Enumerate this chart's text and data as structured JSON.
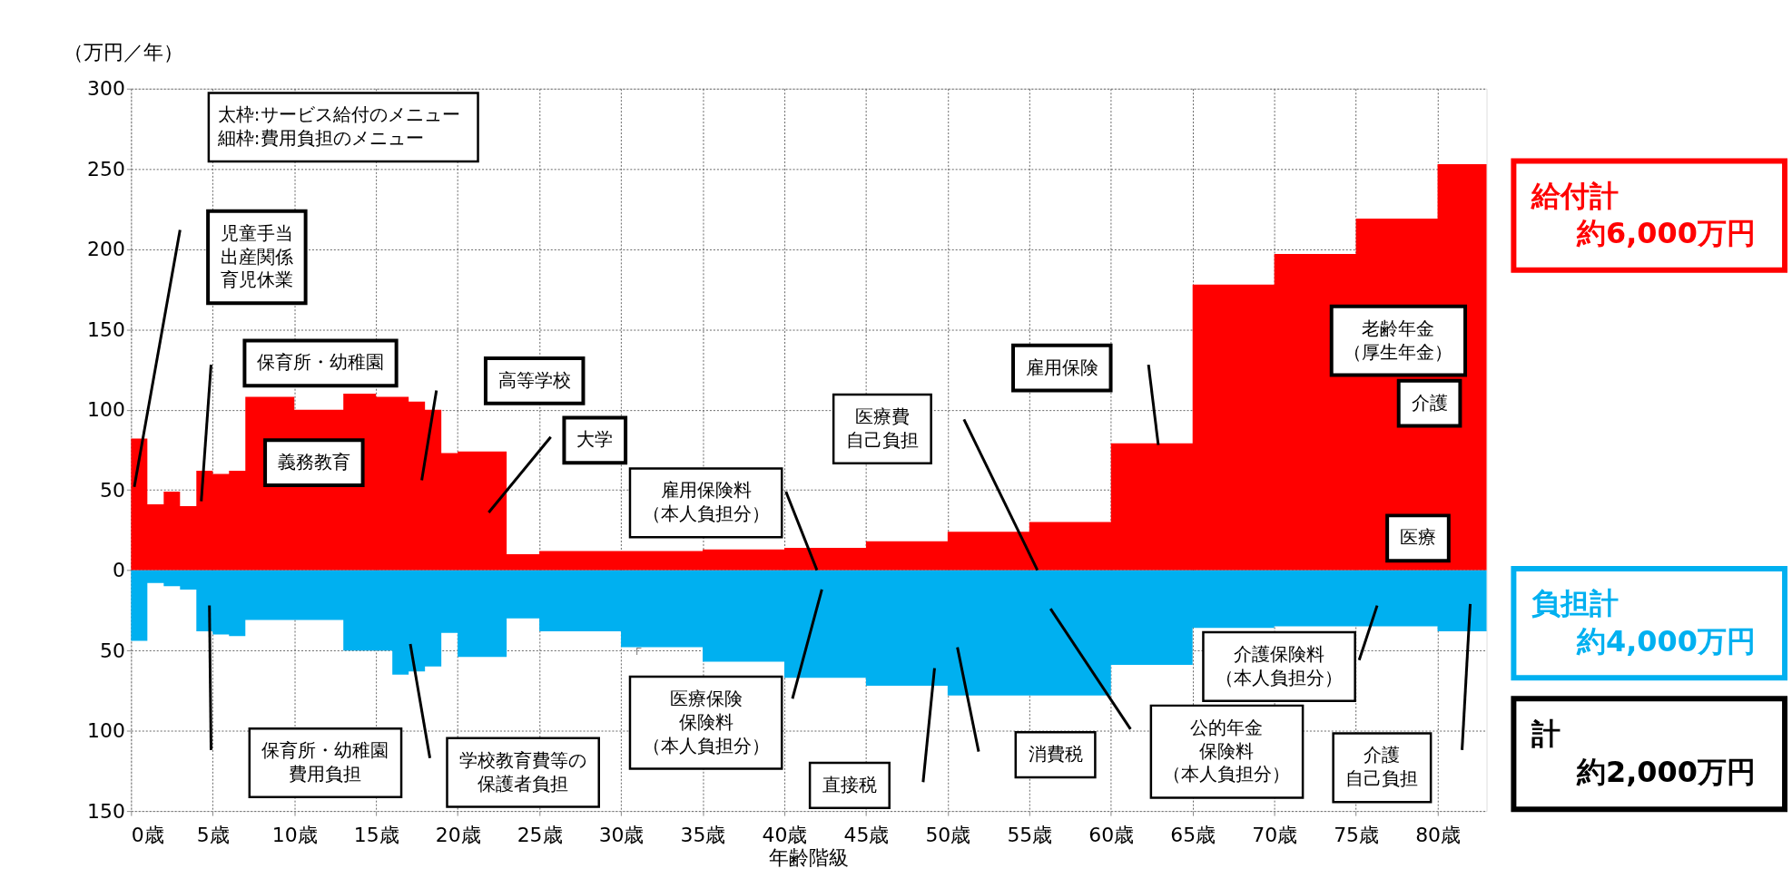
{
  "chart_data": {
    "type": "area",
    "xlabel": "年齢階級",
    "ylabel": "（万円／年）",
    "series": [
      {
        "color": "#ff0000",
        "x": [
          0,
          1,
          2,
          3,
          4,
          5,
          6,
          7,
          10,
          13,
          15,
          17,
          18,
          19,
          20,
          23,
          25,
          35,
          40,
          45,
          50,
          55,
          60,
          65,
          70,
          75,
          80,
          83
        ],
        "values": [
          82,
          41,
          49,
          40,
          62,
          60,
          62,
          108,
          100,
          110,
          108,
          105,
          100,
          73,
          74,
          10,
          12,
          13,
          14,
          18,
          24,
          30,
          79,
          178,
          197,
          219,
          253,
          253
        ]
      },
      {
        "color": "#00b0f0",
        "x": [
          0,
          1,
          2,
          3,
          4,
          5,
          6,
          7,
          13,
          16,
          17,
          18,
          19,
          20,
          23,
          25,
          30,
          35,
          40,
          45,
          50,
          60,
          65,
          70,
          80,
          83
        ],
        "values": [
          -44,
          -8,
          -10,
          -12,
          -38,
          -40,
          -41,
          -31,
          -50,
          -65,
          -63,
          -60,
          -39,
          -54,
          -30,
          -38,
          -48,
          -57,
          -67,
          -72,
          -78,
          -59,
          -36,
          -35,
          -38,
          -38
        ]
      }
    ],
    "xlim": [
      0,
      83
    ],
    "xticks": [
      {
        "value": 0,
        "label": "0歳"
      },
      {
        "value": 5,
        "label": "5歳"
      },
      {
        "value": 10,
        "label": "10歳"
      },
      {
        "value": 15,
        "label": "15歳"
      },
      {
        "value": 20,
        "label": "20歳"
      },
      {
        "value": 25,
        "label": "25歳"
      },
      {
        "value": 30,
        "label": "30歳"
      },
      {
        "value": 35,
        "label": "35歳"
      },
      {
        "value": 40,
        "label": "40歳"
      },
      {
        "value": 45,
        "label": "45歳"
      },
      {
        "value": 50,
        "label": "50歳"
      },
      {
        "value": 55,
        "label": "55歳"
      },
      {
        "value": 60,
        "label": "60歳"
      },
      {
        "value": 65,
        "label": "65歳"
      },
      {
        "value": 70,
        "label": "70歳"
      },
      {
        "value": 75,
        "label": "75歳"
      },
      {
        "value": 80,
        "label": "80歳"
      }
    ],
    "ylim": [
      -150,
      300
    ],
    "yticks": [
      300,
      250,
      200,
      150,
      100,
      50,
      0,
      {
        "value": -50,
        "label": "50"
      },
      {
        "value": -100,
        "label": "100"
      },
      {
        "value": -150,
        "label": "150"
      }
    ],
    "grid": true,
    "annotations": [
      "太枠:サービス給付のメニュー",
      "細枠:費用負担のメニュー",
      "児童手当出産関係育児休業",
      "保育所・幼稚園",
      "義務教育",
      "高等学校",
      "大学",
      {
        "text": "雇用保険料（本人負担分）",
        "x": 42,
        "y": 0
      },
      "医療費自己負担",
      "雇用保険",
      "老齢年金（厚生年金）",
      "介護",
      "医療",
      "保育所・幼稚園費用負担",
      "学校教育費等の保護者負担",
      "医療保険保険料（本人負担分）",
      "直接税",
      "消費税",
      "公的年金保険料（本人負担分）",
      "介護保険料（本人負担分）",
      "介護自己負担",
      "「",
      "給付計",
      "約6,000万円",
      "負担計",
      "約4,000万円",
      "計",
      "約2,000万円"
    ]
  }
}
